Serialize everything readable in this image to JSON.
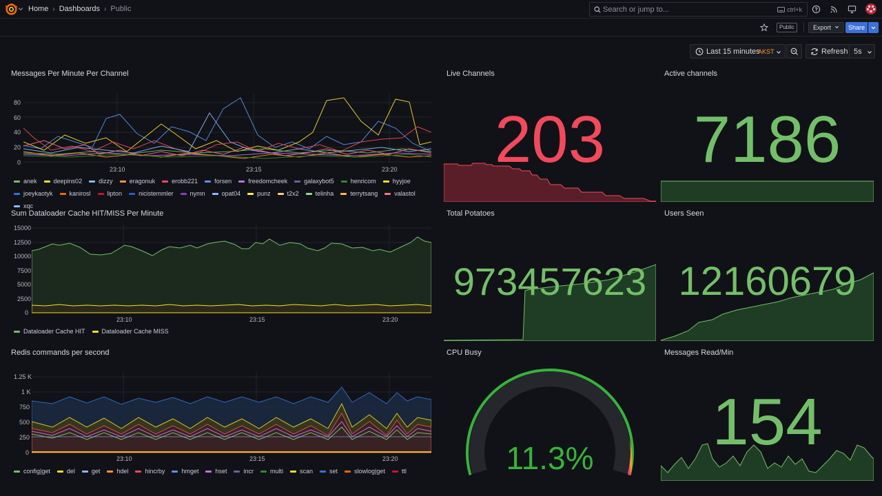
{
  "topbar": {
    "breadcrumbs": [
      "Home",
      "Dashboards",
      "Public"
    ],
    "search_placeholder": "Search or jump to...",
    "search_shortcut": "ctrl+k"
  },
  "toolbar": {
    "public_badge": "Public",
    "export_label": "Export",
    "share_label": "Share"
  },
  "timepicker": {
    "range_label": "Last 15 minutes",
    "timezone": "AKST",
    "refresh_label": "Refresh",
    "refresh_interval": "5s"
  },
  "colors": {
    "green": "#73bf69",
    "red": "#f2495c",
    "yellow": "#fade2a",
    "blue": "#5794f2",
    "orange": "#ff9830"
  },
  "panels": {
    "messages_per_minute": {
      "title": "Messages Per Minute Per Channel",
      "y_ticks": [
        "80",
        "60",
        "40",
        "20",
        "0"
      ],
      "x_ticks": [
        "23:10",
        "23:15",
        "23:20"
      ],
      "legend": [
        {
          "name": "anek",
          "color": "#73bf69"
        },
        {
          "name": "deepins02",
          "color": "#fade2a"
        },
        {
          "name": "dizzy",
          "color": "#8ab8ff"
        },
        {
          "name": "eragonuk",
          "color": "#ff9830"
        },
        {
          "name": "erobb221",
          "color": "#f2495c"
        },
        {
          "name": "forsen",
          "color": "#5794f2"
        },
        {
          "name": "freedomcheek",
          "color": "#b877d9"
        },
        {
          "name": "galaxybot5",
          "color": "#705da0"
        },
        {
          "name": "henricom",
          "color": "#37872d"
        },
        {
          "name": "hyyjoe",
          "color": "#fade2a"
        },
        {
          "name": "joeykaotyk",
          "color": "#3274d9"
        },
        {
          "name": "kanirosl",
          "color": "#fa6400"
        },
        {
          "name": "lipton",
          "color": "#c4162a"
        },
        {
          "name": "nicistemmler",
          "color": "#1f60c4"
        },
        {
          "name": "nymn",
          "color": "#8f3bb8"
        },
        {
          "name": "opat04",
          "color": "#8ab8ff"
        },
        {
          "name": "punz",
          "color": "#ffee52"
        },
        {
          "name": "t2x2",
          "color": "#ffcb7d"
        },
        {
          "name": "telinha",
          "color": "#96d98d"
        },
        {
          "name": "terrytsang",
          "color": "#ffb357"
        },
        {
          "name": "valastol",
          "color": "#ff7383"
        },
        {
          "name": "xqc",
          "color": "#8ab8ff"
        }
      ]
    },
    "live_channels": {
      "title": "Live Channels",
      "value": "203",
      "color": "#f2495c"
    },
    "active_channels": {
      "title": "Active channels",
      "value": "7186",
      "color": "#73bf69"
    },
    "dataloader": {
      "title": "Sum Dataloader Cache HIT/MISS Per Minute",
      "y_ticks": [
        "15000",
        "12500",
        "10000",
        "7500",
        "5000",
        "2500",
        "0"
      ],
      "x_ticks": [
        "23:10",
        "23:15",
        "23:20"
      ],
      "legend": [
        {
          "name": "Dataloader Cache HIT",
          "color": "#73bf69"
        },
        {
          "name": "Dataloader Cache MISS",
          "color": "#fade2a"
        }
      ]
    },
    "total_potatoes": {
      "title": "Total Potatoes",
      "value": "973457623",
      "color": "#73bf69"
    },
    "users_seen": {
      "title": "Users Seen",
      "value": "12160679",
      "color": "#73bf69"
    },
    "redis": {
      "title": "Redis commands per second",
      "y_ticks": [
        "1.25 K",
        "1 K",
        "750",
        "500",
        "250",
        "0"
      ],
      "x_ticks": [
        "23:10",
        "23:15",
        "23:20"
      ],
      "legend": [
        {
          "name": "config|get",
          "color": "#73bf69"
        },
        {
          "name": "del",
          "color": "#fade2a"
        },
        {
          "name": "get",
          "color": "#8ab8ff"
        },
        {
          "name": "hdel",
          "color": "#ff9830"
        },
        {
          "name": "hincrby",
          "color": "#f2495c"
        },
        {
          "name": "hmget",
          "color": "#5794f2"
        },
        {
          "name": "hset",
          "color": "#b877d9"
        },
        {
          "name": "incr",
          "color": "#705da0"
        },
        {
          "name": "multi",
          "color": "#37872d"
        },
        {
          "name": "scan",
          "color": "#fade2a"
        },
        {
          "name": "set",
          "color": "#3274d9"
        },
        {
          "name": "slowlog|get",
          "color": "#fa6400"
        },
        {
          "name": "ttl",
          "color": "#c4162a"
        }
      ]
    },
    "cpu_busy": {
      "title": "CPU Busy",
      "value": "11.3%",
      "percent": 11.3,
      "color": "#37b33a"
    },
    "messages_read": {
      "title": "Messages Read/Min",
      "value": "154",
      "color": "#73bf69"
    }
  }
}
